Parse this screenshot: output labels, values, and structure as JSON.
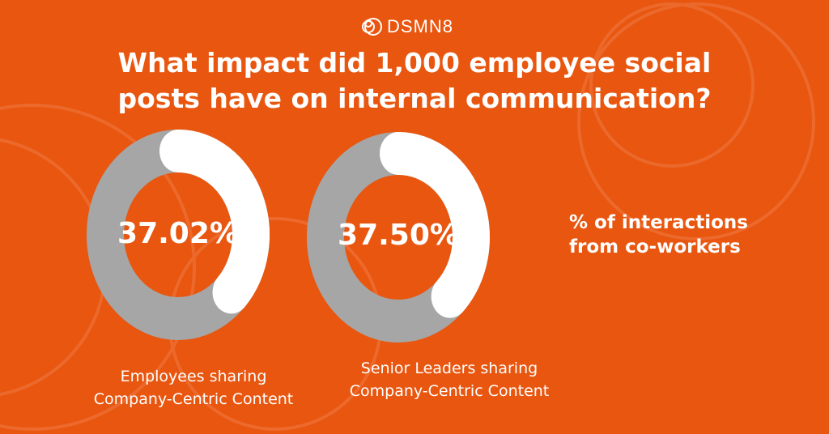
{
  "logo": {
    "text": "DSMN8"
  },
  "title": {
    "line1": "What impact did 1,000 employee social",
    "line2": "posts have on internal communication?"
  },
  "side_label": {
    "line1": "% of interactions",
    "line2": "from co-workers"
  },
  "colors": {
    "background": "#E8560F",
    "track": "#A6A6A6",
    "fill": "#FFFFFF"
  },
  "chart_data": [
    {
      "type": "pie",
      "variant": "donut",
      "value_label": "37.02%",
      "value": 37.02,
      "caption_line1": "Employees sharing",
      "caption_line2": "Company-Centric Content"
    },
    {
      "type": "pie",
      "variant": "donut",
      "value_label": "37.50%",
      "value": 37.5,
      "caption_line1": "Senior Leaders sharing",
      "caption_line2": "Company-Centric Content"
    }
  ]
}
